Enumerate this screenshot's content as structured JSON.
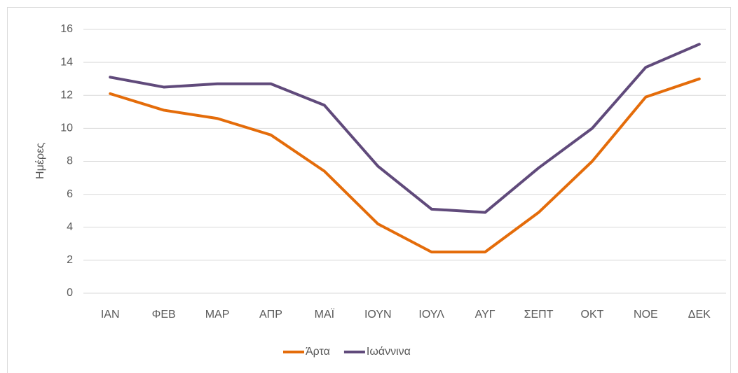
{
  "chart_data": {
    "type": "line",
    "y_label": "Ημέρες",
    "categories": [
      "ΙΑΝ",
      "ΦΕΒ",
      "ΜΑΡ",
      "ΑΠΡ",
      "ΜΑΪ",
      "ΙΟΥΝ",
      "ΙΟΥΛ",
      "ΑΥΓ",
      "ΣΕΠΤ",
      "ΟΚΤ",
      "ΝΟΕ",
      "ΔΕΚ"
    ],
    "series": [
      {
        "name": "Άρτα",
        "color": "#e46c0a",
        "values": [
          12.1,
          11.1,
          10.6,
          9.6,
          7.4,
          4.2,
          2.5,
          2.5,
          4.9,
          8.0,
          11.9,
          13.0
        ]
      },
      {
        "name": "Ιωάννινα",
        "color": "#604a7b",
        "values": [
          13.1,
          12.5,
          12.7,
          12.7,
          11.4,
          7.7,
          5.1,
          4.9,
          7.6,
          10.0,
          13.7,
          15.1
        ]
      }
    ],
    "ylim": [
      0,
      16
    ],
    "yticks": [
      0,
      2,
      4,
      6,
      8,
      10,
      12,
      14,
      16
    ],
    "grid": true,
    "legend": "bottom"
  }
}
